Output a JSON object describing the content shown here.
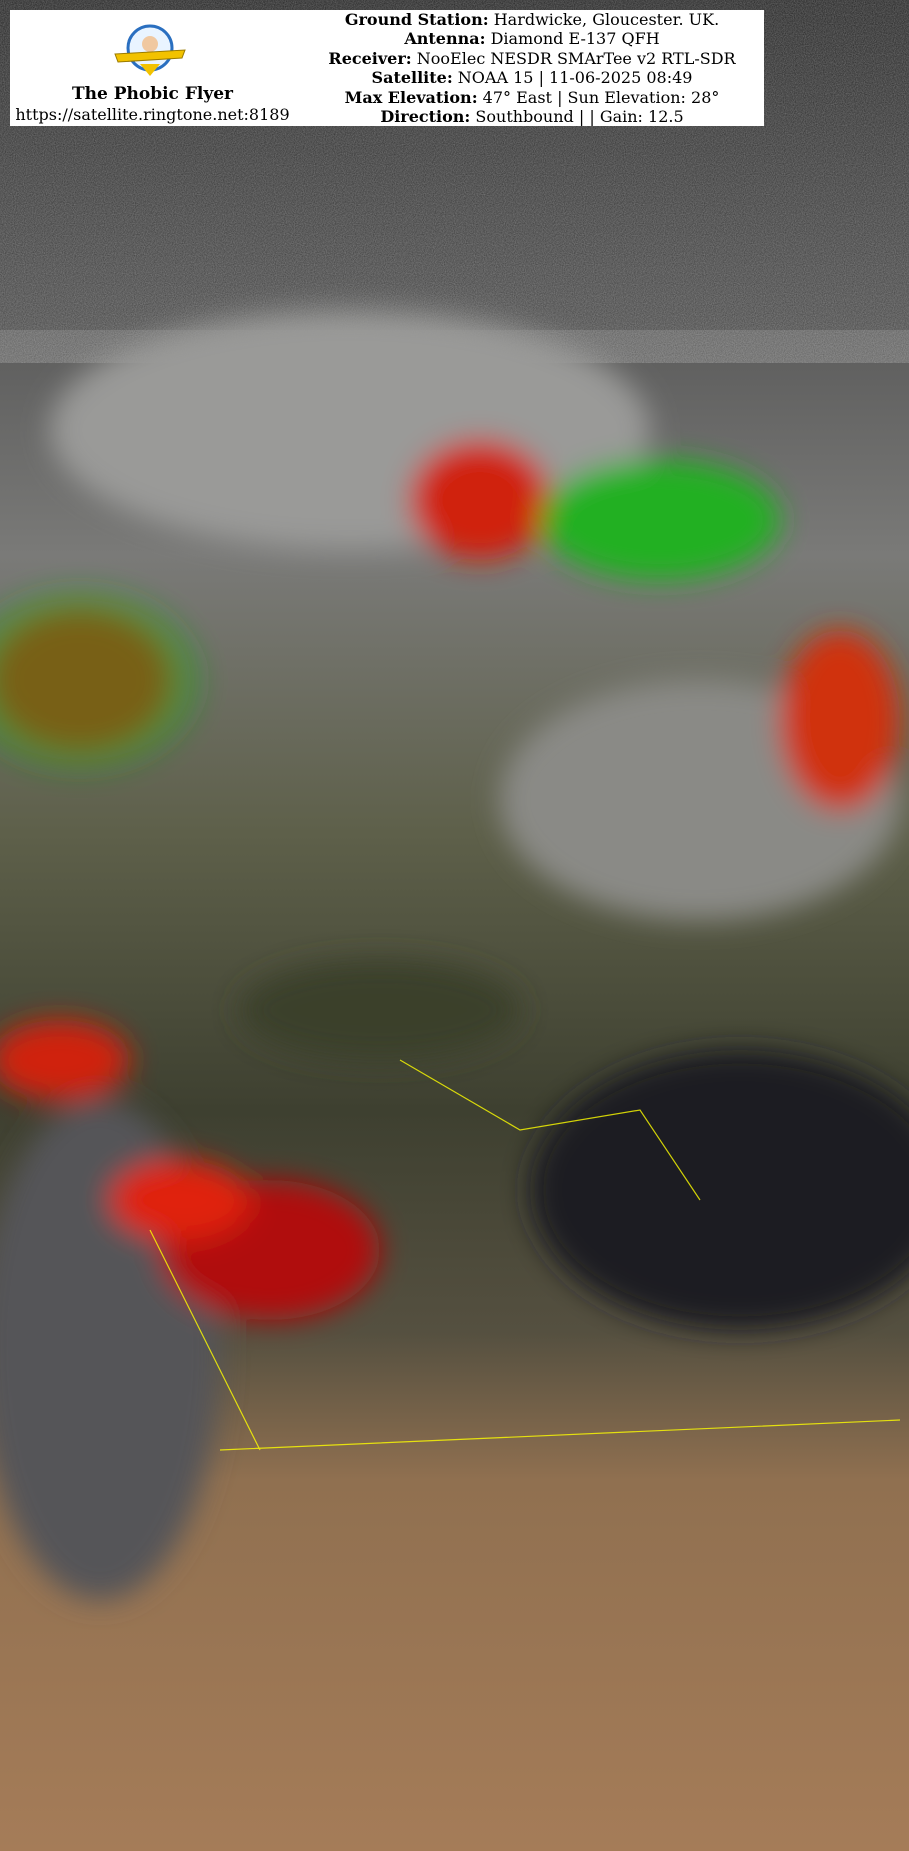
{
  "header": {
    "brand_name": "The Phobic Flyer",
    "brand_url": "https://satellite.ringtone.net:8189",
    "logo_text": "The Phobic Flyer",
    "lines": [
      {
        "label": "Ground Station:",
        "value": " Hardwicke, Gloucester. UK."
      },
      {
        "label": "Antenna:",
        "value": " Diamond E-137 QFH"
      },
      {
        "label": "Receiver:",
        "value": " NooElec NESDR SMArTee v2 RTL-SDR"
      },
      {
        "label": "Satellite:",
        "value": " NOAA 15 | 11-06-2025 08:49"
      },
      {
        "label": "Max Elevation:",
        "value": " 47° East | Sun Elevation: 28°"
      },
      {
        "label": "Direction:",
        "value": " Southbound | | Gain: 12.5"
      }
    ]
  },
  "image": {
    "type": "NOAA APT false-colour satellite image of Europe and North Africa",
    "colors": {
      "cloud": "#b8b8b8",
      "land": "#4a4d32",
      "sea": "#1c1c22",
      "desert": "#a07a55",
      "storm_red": "#e01010",
      "storm_green": "#20c020",
      "coastline": "#ffff00"
    }
  }
}
